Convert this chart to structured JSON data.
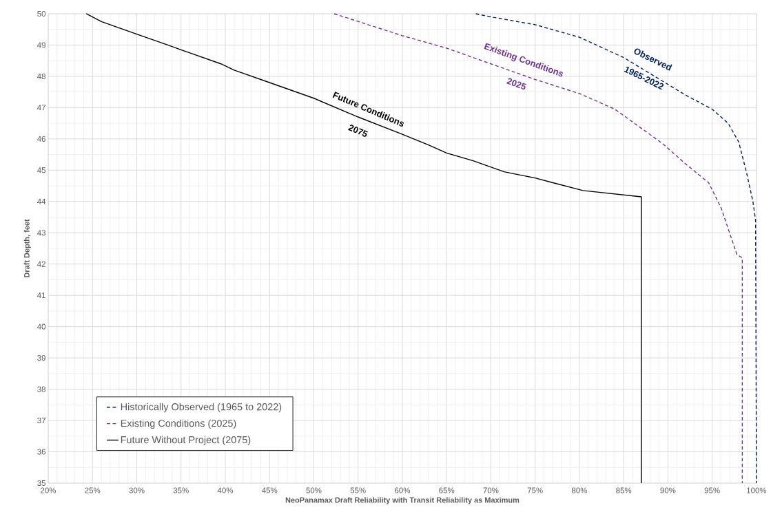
{
  "chart_data": {
    "type": "line",
    "xlabel": "NeoPanamax Draft Reliability with Transit Reliability as Maximum",
    "ylabel": "Draft Depth, feet",
    "xlim": [
      20,
      100
    ],
    "ylim": [
      35,
      50
    ],
    "xticks": [
      {
        "value": 20,
        "label": "20%"
      },
      {
        "value": 25,
        "label": "25%"
      },
      {
        "value": 30,
        "label": "30%"
      },
      {
        "value": 35,
        "label": "35%"
      },
      {
        "value": 40,
        "label": "40%"
      },
      {
        "value": 45,
        "label": "45%"
      },
      {
        "value": 50,
        "label": "50%"
      },
      {
        "value": 55,
        "label": "55%"
      },
      {
        "value": 60,
        "label": "60%"
      },
      {
        "value": 65,
        "label": "65%"
      },
      {
        "value": 70,
        "label": "70%"
      },
      {
        "value": 75,
        "label": "75%"
      },
      {
        "value": 80,
        "label": "80%"
      },
      {
        "value": 85,
        "label": "85%"
      },
      {
        "value": 90,
        "label": "90%"
      },
      {
        "value": 95,
        "label": "95%"
      },
      {
        "value": 100,
        "label": "100%"
      }
    ],
    "yticks": [
      35,
      36,
      37,
      38,
      39,
      40,
      41,
      42,
      43,
      44,
      45,
      46,
      47,
      48,
      49,
      50
    ],
    "grid": true,
    "legend": "bottom left",
    "marker": "none",
    "series": [
      {
        "name": "Historically Observed (1965 to 2022)",
        "color": "#002060",
        "line_style": "dashed",
        "x": [
          68.3,
          70,
          75,
          80,
          85,
          88.5,
          92,
          95,
          96.8,
          98,
          98.9,
          99.6,
          99.9,
          100
        ],
        "values": [
          50,
          49.9,
          49.65,
          49.25,
          48.6,
          48.0,
          47.4,
          46.95,
          46.5,
          45.9,
          44.9,
          44.0,
          43.4,
          35
        ]
      },
      {
        "name": "Existing Conditions (2025)",
        "color": "#7030a0",
        "line_style": "dashed",
        "x": [
          52.3,
          60,
          65,
          70,
          75,
          80,
          84,
          89.4,
          92,
          94.6,
          96,
          97.8,
          98.4,
          98.4
        ],
        "values": [
          50,
          49.3,
          48.9,
          48.4,
          47.9,
          47.45,
          46.95,
          45.85,
          45.2,
          44.6,
          43.8,
          42.3,
          42.2,
          35
        ]
      },
      {
        "name": "Future Without Project (2075)",
        "color": "#000000",
        "line_style": "solid",
        "x": [
          24.3,
          26,
          30,
          33.5,
          36,
          39.5,
          41,
          45,
          50,
          55,
          60,
          63,
          65,
          68,
          71.5,
          75,
          77,
          80.4,
          87,
          87
        ],
        "values": [
          50,
          49.75,
          49.35,
          49.0,
          48.75,
          48.4,
          48.2,
          47.8,
          47.3,
          46.7,
          46.15,
          45.8,
          45.55,
          45.3,
          44.95,
          44.75,
          44.6,
          44.35,
          44.15,
          35
        ]
      }
    ],
    "annotations": [
      "Future Conditions",
      "2075",
      "Existing Conditions",
      "2025",
      "Observed",
      "1965-2022"
    ]
  }
}
